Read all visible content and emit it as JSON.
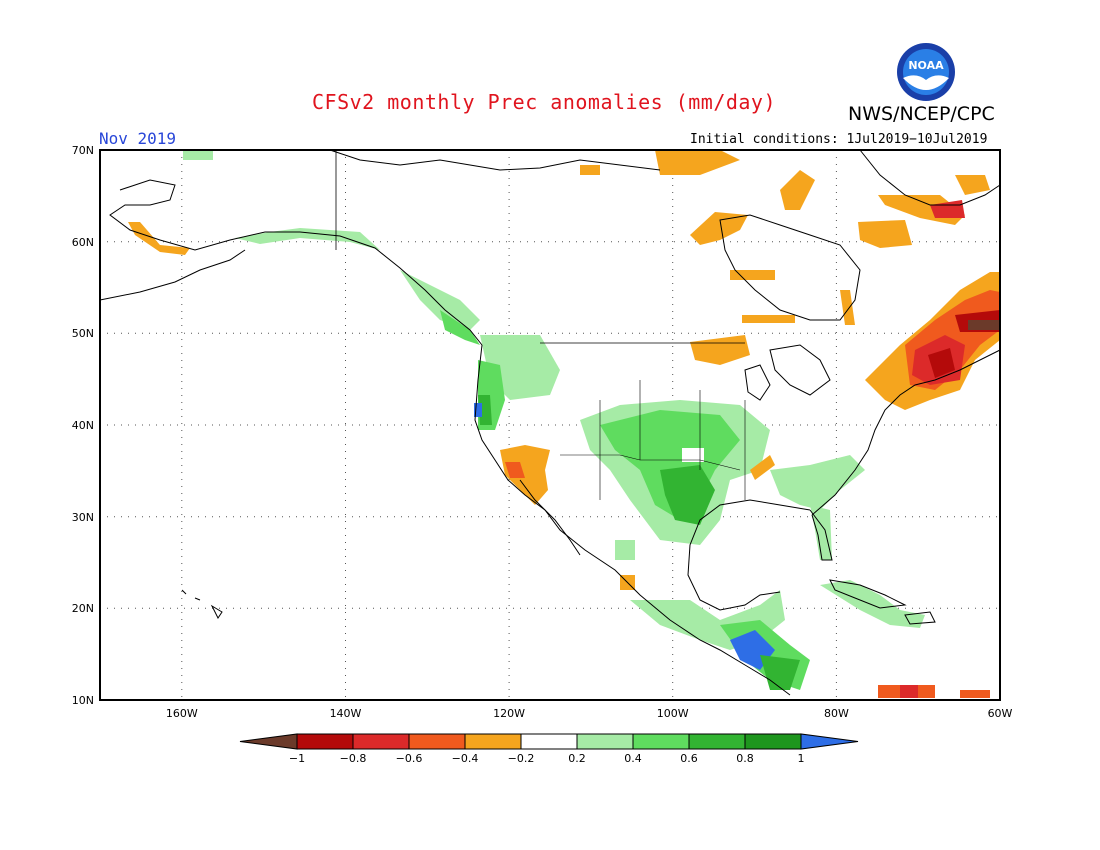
{
  "header": {
    "title": "CFSv2 monthly Prec anomalies (mm/day)",
    "agency": "NWS/NCEP/CPC",
    "logo_text": "NOAA",
    "valid_month": "Nov 2019",
    "initial_conditions": "Initial conditions: 1Jul2019−10Jul2019"
  },
  "map": {
    "lat_labels": [
      "70N",
      "60N",
      "50N",
      "40N",
      "30N",
      "20N",
      "10N"
    ],
    "lon_labels": [
      "160W",
      "140W",
      "120W",
      "100W",
      "80W",
      "60W"
    ],
    "grid": true
  },
  "colorbar": {
    "labels": [
      "−1",
      "−0.8",
      "−0.6",
      "−0.4",
      "−0.2",
      "0.2",
      "0.4",
      "0.6",
      "0.8",
      "1"
    ],
    "colors": [
      "#6b3a2a",
      "#b40a0a",
      "#dc2a2a",
      "#f05a1e",
      "#f5a51e",
      "#ffffff",
      "#a6eba6",
      "#5fdc5f",
      "#32b432",
      "#1e961e",
      "#2e6ee6"
    ]
  }
}
